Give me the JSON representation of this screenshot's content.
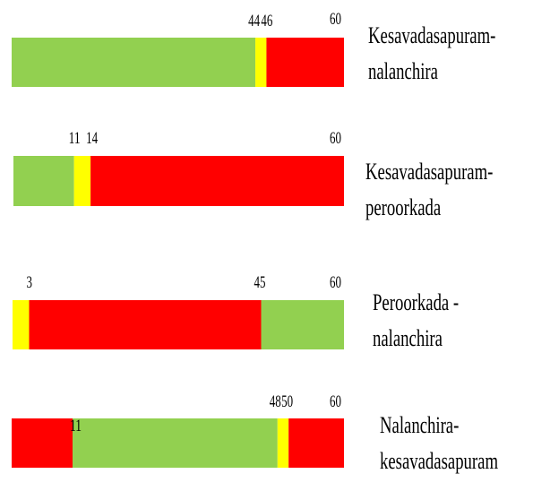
{
  "chart_data": {
    "type": "bar",
    "orientation": "horizontal",
    "stacked": true,
    "xlim": [
      0,
      60
    ],
    "grid": false,
    "legend": "none",
    "colors": {
      "green": "#92d050",
      "yellow": "#ffff00",
      "red": "#ff0000"
    },
    "bars": [
      {
        "label_lines": [
          "Kesavadasapuram-",
          "nalanchira"
        ],
        "segments": [
          {
            "start": 0,
            "end": 44,
            "color": "green"
          },
          {
            "start": 44,
            "end": 46,
            "color": "yellow"
          },
          {
            "start": 46,
            "end": 60,
            "color": "red"
          }
        ],
        "tick_labels": [
          "44",
          "46",
          "60"
        ]
      },
      {
        "label_lines": [
          "Kesavadasapuram-",
          "peroorkada"
        ],
        "segments": [
          {
            "start": 0,
            "end": 11,
            "color": "green"
          },
          {
            "start": 11,
            "end": 14,
            "color": "yellow"
          },
          {
            "start": 14,
            "end": 60,
            "color": "red"
          }
        ],
        "tick_labels": [
          "11",
          "14",
          "60"
        ]
      },
      {
        "label_lines": [
          "Peroorkada -",
          "nalanchira"
        ],
        "segments": [
          {
            "start": 0,
            "end": 3,
            "color": "yellow"
          },
          {
            "start": 3,
            "end": 45,
            "color": "red"
          },
          {
            "start": 45,
            "end": 60,
            "color": "green"
          }
        ],
        "tick_labels": [
          "3",
          "45",
          "60"
        ]
      },
      {
        "label_lines": [
          "Nalanchira-",
          "kesavadasapuram"
        ],
        "segments": [
          {
            "start": 0,
            "end": 11,
            "color": "red"
          },
          {
            "start": 11,
            "end": 48,
            "color": "green"
          },
          {
            "start": 48,
            "end": 50,
            "color": "yellow"
          },
          {
            "start": 50,
            "end": 60,
            "color": "red"
          }
        ],
        "tick_labels": [
          "11",
          "48",
          "50",
          "60"
        ]
      }
    ]
  }
}
